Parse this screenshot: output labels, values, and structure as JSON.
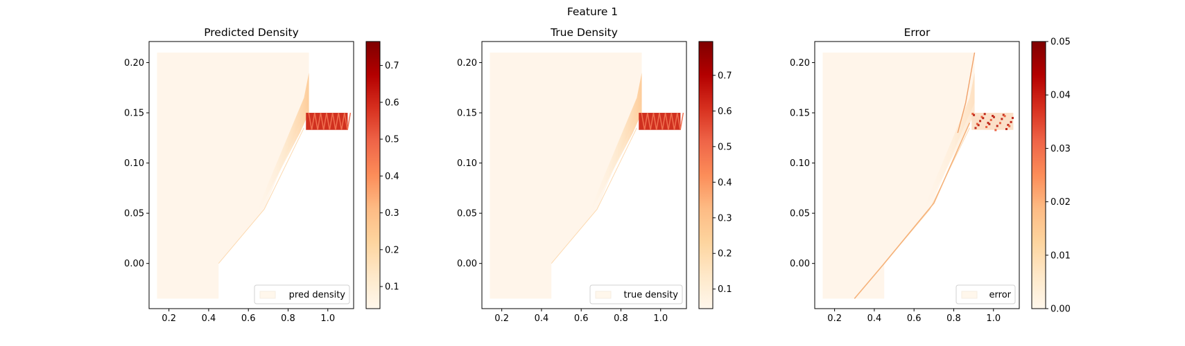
{
  "suptitle": "Feature 1",
  "chart_data": [
    {
      "type": "heatmap",
      "title": "Predicted Density",
      "legend": "pred density",
      "legend_position": "lower right",
      "colormap": "OrRd",
      "xlim": [
        0.1,
        1.13
      ],
      "ylim": [
        -0.045,
        0.221
      ],
      "xticks": [
        "0.2",
        "0.4",
        "0.6",
        "0.8",
        "1.0"
      ],
      "yticks": [
        "0.00",
        "0.05",
        "0.10",
        "0.15",
        "0.20"
      ],
      "colorbar": {
        "min": 0.04,
        "max": 0.765,
        "ticks": [
          "0.1",
          "0.2",
          "0.3",
          "0.4",
          "0.5",
          "0.6",
          "0.7"
        ]
      },
      "domain_outline": {
        "x": [
          0.14,
          0.14,
          0.45,
          0.45,
          0.68,
          0.88,
          1.1,
          1.1,
          0.9,
          0.9
        ],
        "y": [
          -0.035,
          0.21,
          0.21,
          -0.035,
          0.054,
          0.15,
          0.15,
          0.133,
          0.133,
          0.21
        ]
      }
    },
    {
      "type": "heatmap",
      "title": "True Density",
      "legend": "true density",
      "legend_position": "lower right",
      "colormap": "OrRd",
      "xlim": [
        0.1,
        1.13
      ],
      "ylim": [
        -0.045,
        0.221
      ],
      "xticks": [
        "0.2",
        "0.4",
        "0.6",
        "0.8",
        "1.0"
      ],
      "yticks": [
        "0.00",
        "0.05",
        "0.10",
        "0.15",
        "0.20"
      ],
      "colorbar": {
        "min": 0.045,
        "max": 0.795,
        "ticks": [
          "0.1",
          "0.2",
          "0.3",
          "0.4",
          "0.5",
          "0.6",
          "0.7"
        ]
      }
    },
    {
      "type": "heatmap",
      "title": "Error",
      "legend": "error",
      "legend_position": "lower right",
      "colormap": "OrRd",
      "xlim": [
        0.1,
        1.13
      ],
      "ylim": [
        -0.045,
        0.221
      ],
      "xticks": [
        "0.2",
        "0.4",
        "0.6",
        "0.8",
        "1.0"
      ],
      "yticks": [
        "0.00",
        "0.05",
        "0.10",
        "0.15",
        "0.20"
      ],
      "colorbar": {
        "min": 0.0,
        "max": 0.05,
        "ticks": [
          "0.00",
          "0.01",
          "0.02",
          "0.03",
          "0.04",
          "0.05"
        ]
      }
    }
  ]
}
